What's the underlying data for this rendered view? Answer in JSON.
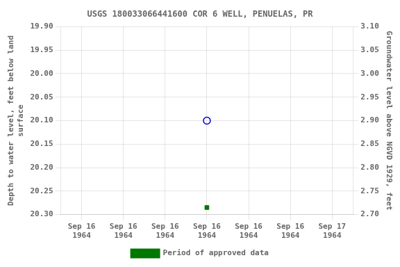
{
  "chart_data": {
    "type": "scatter",
    "title": "USGS 180033066441600 COR 6 WELL, PENUELAS, PR",
    "y_label": "Depth to water level, feet below land\nsurface",
    "y2_label": "Groundwater level above NGVD 1929, feet",
    "categories": [
      "Sep 16\n1964",
      "Sep 16\n1964",
      "Sep 16\n1964",
      "Sep 16\n1964",
      "Sep 16\n1964",
      "Sep 16\n1964",
      "Sep 17\n1964"
    ],
    "series": [
      {
        "color": "#0000cc",
        "marker": "circle-open",
        "values": [
          null,
          null,
          null,
          20.1,
          null,
          null,
          null
        ]
      },
      {
        "name": "Period of approved data",
        "color": "#007700",
        "marker": "square",
        "values": [
          null,
          null,
          null,
          20.285,
          null,
          null,
          null
        ]
      }
    ],
    "ylim": [
      20.3,
      19.9
    ],
    "yticks": [
      {
        "value": 19.9,
        "label": "19.90"
      },
      {
        "value": 19.95,
        "label": "19.95"
      },
      {
        "value": 20.0,
        "label": "20.00"
      },
      {
        "value": 20.05,
        "label": "20.05"
      },
      {
        "value": 20.1,
        "label": "20.10"
      },
      {
        "value": 20.15,
        "label": "20.15"
      },
      {
        "value": 20.2,
        "label": "20.20"
      },
      {
        "value": 20.25,
        "label": "20.25"
      },
      {
        "value": 20.3,
        "label": "20.30"
      }
    ],
    "y2lim": [
      2.7,
      3.1
    ],
    "y2ticks": [
      {
        "value": 3.1,
        "label": "3.10"
      },
      {
        "value": 3.05,
        "label": "3.05"
      },
      {
        "value": 3.0,
        "label": "3.00"
      },
      {
        "value": 2.95,
        "label": "2.95"
      },
      {
        "value": 2.9,
        "label": "2.90"
      },
      {
        "value": 2.85,
        "label": "2.85"
      },
      {
        "value": 2.8,
        "label": "2.80"
      },
      {
        "value": 2.75,
        "label": "2.75"
      },
      {
        "value": 2.7,
        "label": "2.70"
      }
    ],
    "grid": true,
    "legend": "bottom"
  }
}
